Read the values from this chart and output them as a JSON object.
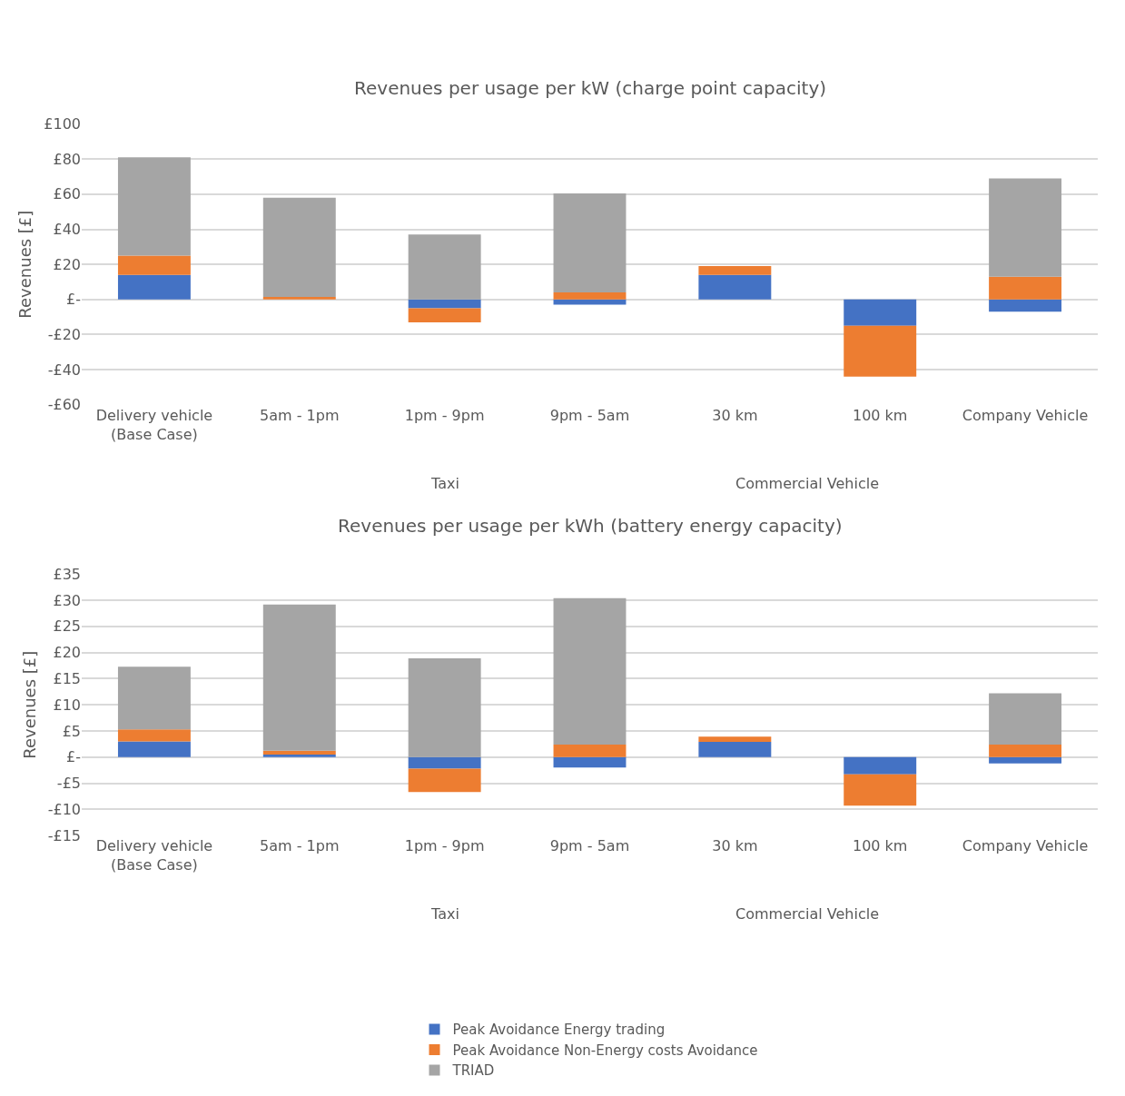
{
  "chart_data": [
    {
      "type": "bar",
      "title": "Revenues per usage per kW (charge point capacity)",
      "ylabel": "Revenues [£]",
      "stacked": true,
      "grid": "y",
      "categories": [
        "Delivery vehicle (Base Case)",
        "5am - 1pm",
        "1pm - 9pm",
        "9pm - 5am",
        "30 km",
        "100 km",
        "Company Vehicle"
      ],
      "annotations": [
        "Taxi",
        "Commercial Vehicle"
      ],
      "series": [
        {
          "color": "#4472c4",
          "values": [
            14,
            0,
            -5,
            -3,
            14,
            -15,
            -7
          ]
        },
        {
          "color": "#ed7d31",
          "values": [
            11,
            1.5,
            -8,
            4,
            5,
            -29,
            13
          ]
        },
        {
          "color": "#a5a5a5",
          "values": [
            56,
            56.5,
            37,
            56.5,
            0,
            0,
            56
          ]
        }
      ],
      "ylim": [
        -60,
        100
      ],
      "yticks": [
        {
          "value": -60,
          "label": "-£60"
        },
        {
          "value": -40,
          "label": "-£40"
        },
        {
          "value": -20,
          "label": "-£20"
        },
        {
          "value": 0,
          "label": "£-"
        },
        {
          "value": 20,
          "label": "£20"
        },
        {
          "value": 40,
          "label": "£40"
        },
        {
          "value": 60,
          "label": "£60"
        },
        {
          "value": 80,
          "label": "£80"
        },
        {
          "value": 100,
          "label": "£100"
        }
      ]
    },
    {
      "type": "bar",
      "title": "Revenues per usage per kWh (battery energy capacity)",
      "ylabel": "Revenues [£]",
      "stacked": true,
      "grid": "y",
      "legend": "bottom",
      "categories": [
        "Delivery vehicle (Base Case)",
        "5am - 1pm",
        "1pm - 9pm",
        "9pm - 5am",
        "30 km",
        "100 km",
        "Company Vehicle"
      ],
      "annotations": [
        "Taxi",
        "Commercial Vehicle"
      ],
      "series": [
        {
          "name": "Peak Avoidance Energy trading",
          "color": "#4472c4",
          "values": [
            3,
            0.5,
            -2.2,
            -2,
            2.9,
            -3.3,
            -1.2
          ]
        },
        {
          "name": "Peak Avoidance Non-Energy costs Avoidance",
          "color": "#ed7d31",
          "values": [
            2.3,
            0.7,
            -4.5,
            2.4,
            1,
            -6,
            2.4
          ]
        },
        {
          "name": "TRIAD",
          "color": "#a5a5a5",
          "values": [
            12,
            28,
            18.9,
            28,
            0,
            0,
            9.8
          ]
        }
      ],
      "ylim": [
        -15,
        35
      ],
      "yticks": [
        {
          "value": -15,
          "label": "-£15"
        },
        {
          "value": -10,
          "label": "-£10"
        },
        {
          "value": -5,
          "label": "-£5"
        },
        {
          "value": 0,
          "label": "£-"
        },
        {
          "value": 5,
          "label": "£5"
        },
        {
          "value": 10,
          "label": "£10"
        },
        {
          "value": 15,
          "label": "£15"
        },
        {
          "value": 20,
          "label": "£20"
        },
        {
          "value": 25,
          "label": "£25"
        },
        {
          "value": 30,
          "label": "£30"
        },
        {
          "value": 35,
          "label": "£35"
        }
      ]
    }
  ]
}
